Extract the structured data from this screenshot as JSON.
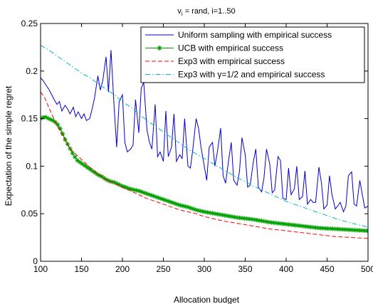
{
  "chart_data": {
    "type": "line",
    "title_main": "v",
    "title_sub": "i",
    "title_rest": " = rand, i=1..50",
    "xlabel": "Allocation budget",
    "ylabel": "Expectation of the simple regret",
    "xlim": [
      100,
      500
    ],
    "ylim": [
      0,
      0.25
    ],
    "x_ticks": [
      100,
      150,
      200,
      250,
      300,
      350,
      400,
      450,
      500
    ],
    "x_tick_labels": [
      "100",
      "150",
      "200",
      "250",
      "300",
      "350",
      "400",
      "450",
      "500"
    ],
    "y_ticks": [
      0,
      0.05,
      0.1,
      0.15,
      0.2,
      0.25
    ],
    "y_tick_labels": [
      "0",
      "0.05",
      "0.1",
      "0.15",
      "0.2",
      "0.25"
    ],
    "grid": false,
    "legend_position": "top-right",
    "series": [
      {
        "name": "Uniform sampling with empirical success",
        "color": "#0000cc",
        "style": "solid",
        "x": [
          100,
          103,
          106,
          110,
          113,
          116,
          120,
          123,
          126,
          130,
          133,
          136,
          140,
          143,
          146,
          150,
          153,
          156,
          160,
          163,
          166,
          170,
          173,
          176,
          180,
          183,
          186,
          190,
          193,
          196,
          200,
          203,
          206,
          210,
          213,
          216,
          220,
          223,
          226,
          230,
          233,
          236,
          240,
          243,
          246,
          250,
          253,
          256,
          260,
          263,
          266,
          270,
          273,
          276,
          280,
          283,
          286,
          290,
          293,
          296,
          300,
          303,
          306,
          310,
          313,
          316,
          320,
          323,
          326,
          330,
          333,
          336,
          340,
          343,
          346,
          350,
          353,
          356,
          360,
          363,
          366,
          370,
          373,
          376,
          380,
          383,
          386,
          390,
          393,
          396,
          400,
          403,
          406,
          410,
          413,
          416,
          420,
          423,
          426,
          430,
          433,
          436,
          440,
          443,
          446,
          450,
          453,
          456,
          460,
          463,
          466,
          470,
          473,
          476,
          480,
          483,
          486,
          490,
          493,
          496,
          500
        ],
        "y": [
          0.193,
          0.19,
          0.186,
          0.181,
          0.176,
          0.171,
          0.165,
          0.168,
          0.158,
          0.164,
          0.16,
          0.155,
          0.162,
          0.152,
          0.157,
          0.15,
          0.155,
          0.148,
          0.15,
          0.16,
          0.172,
          0.195,
          0.18,
          0.19,
          0.215,
          0.178,
          0.222,
          0.16,
          0.12,
          0.168,
          0.175,
          0.125,
          0.115,
          0.118,
          0.122,
          0.17,
          0.135,
          0.182,
          0.188,
          0.138,
          0.125,
          0.118,
          0.165,
          0.11,
          0.115,
          0.105,
          0.158,
          0.11,
          0.12,
          0.155,
          0.105,
          0.112,
          0.108,
          0.15,
          0.1,
          0.098,
          0.118,
          0.15,
          0.14,
          0.12,
          0.1,
          0.085,
          0.12,
          0.125,
          0.1,
          0.115,
          0.14,
          0.09,
          0.082,
          0.108,
          0.125,
          0.085,
          0.08,
          0.095,
          0.13,
          0.112,
          0.078,
          0.08,
          0.105,
          0.118,
          0.078,
          0.073,
          0.088,
          0.118,
          0.102,
          0.072,
          0.075,
          0.11,
          0.106,
          0.066,
          0.065,
          0.098,
          0.07,
          0.076,
          0.1,
          0.065,
          0.068,
          0.095,
          0.06,
          0.065,
          0.062,
          0.062,
          0.099,
          0.083,
          0.055,
          0.059,
          0.09,
          0.07,
          0.055,
          0.058,
          0.062,
          0.052,
          0.058,
          0.09,
          0.094,
          0.06,
          0.058,
          0.085,
          0.07,
          0.056,
          0.058
        ]
      },
      {
        "name": "UCB with empirical success",
        "color": "#00a000",
        "style": "solid-star",
        "x": [
          100,
          105,
          110,
          115,
          120,
          125,
          130,
          135,
          140,
          145,
          150,
          155,
          160,
          165,
          170,
          175,
          180,
          185,
          190,
          195,
          200,
          210,
          220,
          230,
          240,
          250,
          260,
          270,
          280,
          290,
          300,
          320,
          340,
          360,
          380,
          400,
          420,
          440,
          460,
          480,
          500
        ],
        "y": [
          0.15,
          0.152,
          0.15,
          0.148,
          0.145,
          0.138,
          0.128,
          0.12,
          0.112,
          0.106,
          0.103,
          0.1,
          0.097,
          0.094,
          0.091,
          0.089,
          0.086,
          0.084,
          0.083,
          0.081,
          0.079,
          0.076,
          0.074,
          0.071,
          0.068,
          0.065,
          0.062,
          0.059,
          0.057,
          0.054,
          0.052,
          0.049,
          0.046,
          0.044,
          0.041,
          0.039,
          0.037,
          0.035,
          0.034,
          0.033,
          0.032
        ]
      },
      {
        "name": "Exp3 with empirical success",
        "color": "#ff0000",
        "style": "dashed",
        "x": [
          100,
          105,
          110,
          115,
          120,
          125,
          130,
          135,
          140,
          145,
          150,
          160,
          170,
          180,
          190,
          200,
          210,
          220,
          230,
          240,
          250,
          260,
          270,
          280,
          290,
          300,
          320,
          340,
          360,
          380,
          400,
          420,
          440,
          460,
          480,
          500
        ],
        "y": [
          0.178,
          0.172,
          0.162,
          0.152,
          0.143,
          0.135,
          0.127,
          0.12,
          0.115,
          0.111,
          0.107,
          0.099,
          0.092,
          0.086,
          0.082,
          0.078,
          0.074,
          0.07,
          0.066,
          0.063,
          0.06,
          0.057,
          0.054,
          0.052,
          0.05,
          0.047,
          0.043,
          0.04,
          0.037,
          0.034,
          0.032,
          0.03,
          0.028,
          0.026,
          0.025,
          0.024
        ]
      },
      {
        "name": "Exp3 with γ=1/2 and empirical success",
        "color": "#00b8c8",
        "style": "dashdot",
        "x": [
          100,
          110,
          120,
          130,
          140,
          150,
          160,
          170,
          180,
          190,
          200,
          210,
          220,
          230,
          240,
          250,
          260,
          270,
          280,
          290,
          300,
          320,
          340,
          360,
          380,
          400,
          420,
          440,
          460,
          480,
          500
        ],
        "y": [
          0.227,
          0.222,
          0.216,
          0.21,
          0.204,
          0.198,
          0.193,
          0.187,
          0.181,
          0.175,
          0.168,
          0.162,
          0.155,
          0.148,
          0.142,
          0.136,
          0.13,
          0.124,
          0.118,
          0.113,
          0.108,
          0.098,
          0.088,
          0.079,
          0.071,
          0.063,
          0.057,
          0.051,
          0.045,
          0.04,
          0.036
        ]
      }
    ]
  }
}
